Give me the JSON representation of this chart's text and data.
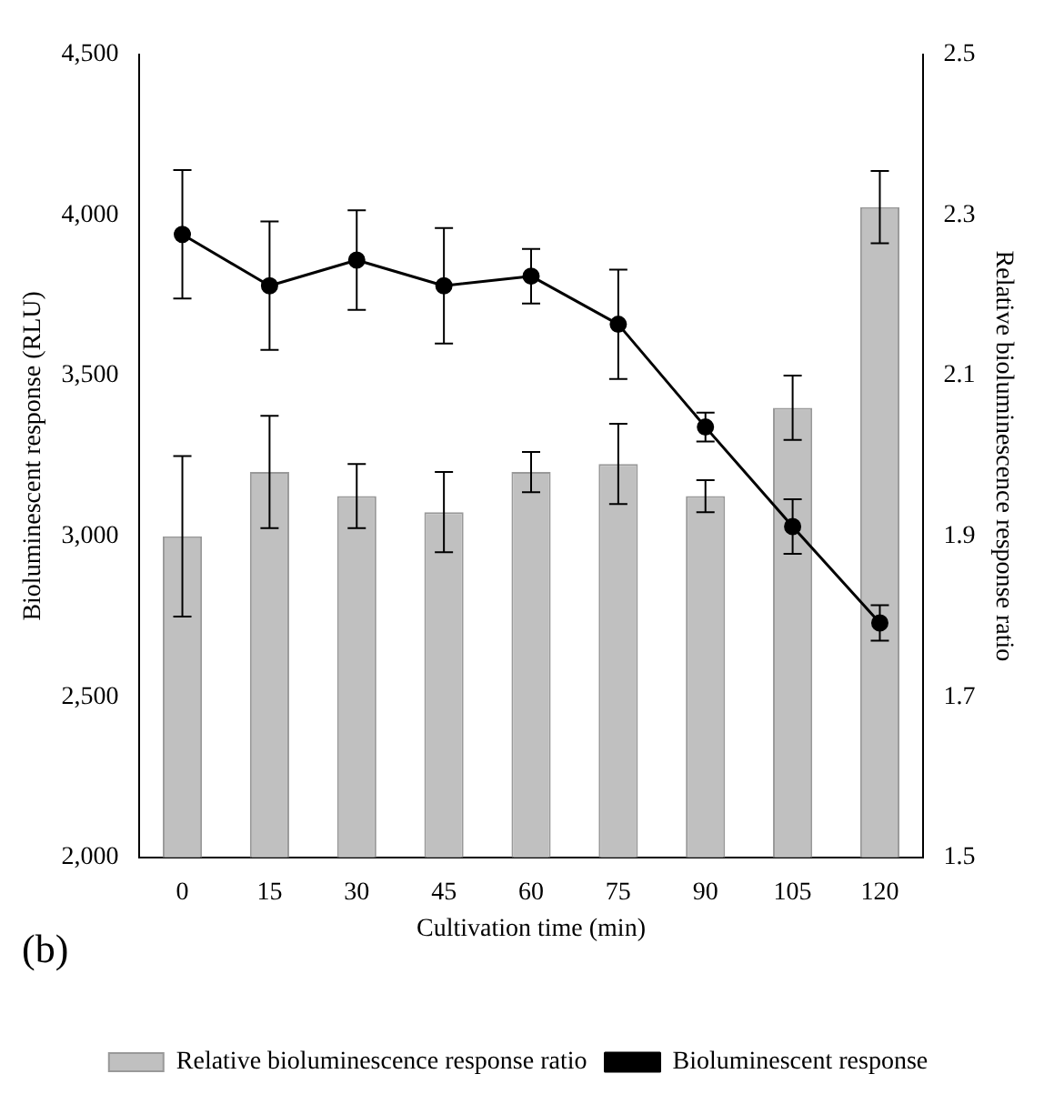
{
  "chart_data": {
    "type": "bar",
    "categories": [
      "0",
      "15",
      "30",
      "45",
      "60",
      "75",
      "90",
      "105",
      "120"
    ],
    "xlabel": "Cultivation time (min)",
    "ylabel": "Bioluminescent response (RLU)",
    "y2label": "Relative bioluminescence response ratio",
    "ylim": [
      2000,
      4500
    ],
    "yticks": [
      {
        "value": 2000,
        "label": "2,000"
      },
      {
        "value": 2500,
        "label": "2,500"
      },
      {
        "value": 3000,
        "label": "3,000"
      },
      {
        "value": 3500,
        "label": "3,500"
      },
      {
        "value": 4000,
        "label": "4,000"
      },
      {
        "value": 4500,
        "label": "4,500"
      }
    ],
    "y2lim": [
      1.5,
      2.5
    ],
    "y2ticks": [
      1.5,
      1.7,
      1.9,
      2.1,
      2.3,
      2.5
    ],
    "series": [
      {
        "name": "Relative bioluminescence response ratio",
        "axis": "y2",
        "color": "#c0c0c0",
        "values": [
          1.9,
          1.98,
          1.95,
          1.93,
          1.98,
          1.99,
          1.95,
          2.06,
          2.31
        ],
        "errors": [
          0.1,
          0.07,
          0.04,
          0.05,
          0.025,
          0.05,
          0.02,
          0.04,
          0.045
        ]
      },
      {
        "name": "Bioluminescent response",
        "type": "line",
        "color": "#000000",
        "marker": "circle",
        "values": [
          3940,
          3780,
          3860,
          3780,
          3810,
          3660,
          3340,
          3030,
          2730
        ],
        "errors": [
          200,
          200,
          155,
          180,
          85,
          170,
          45,
          85,
          55
        ]
      }
    ],
    "annotations": [
      "(b)"
    ],
    "legend": "bottom",
    "grid": false
  }
}
